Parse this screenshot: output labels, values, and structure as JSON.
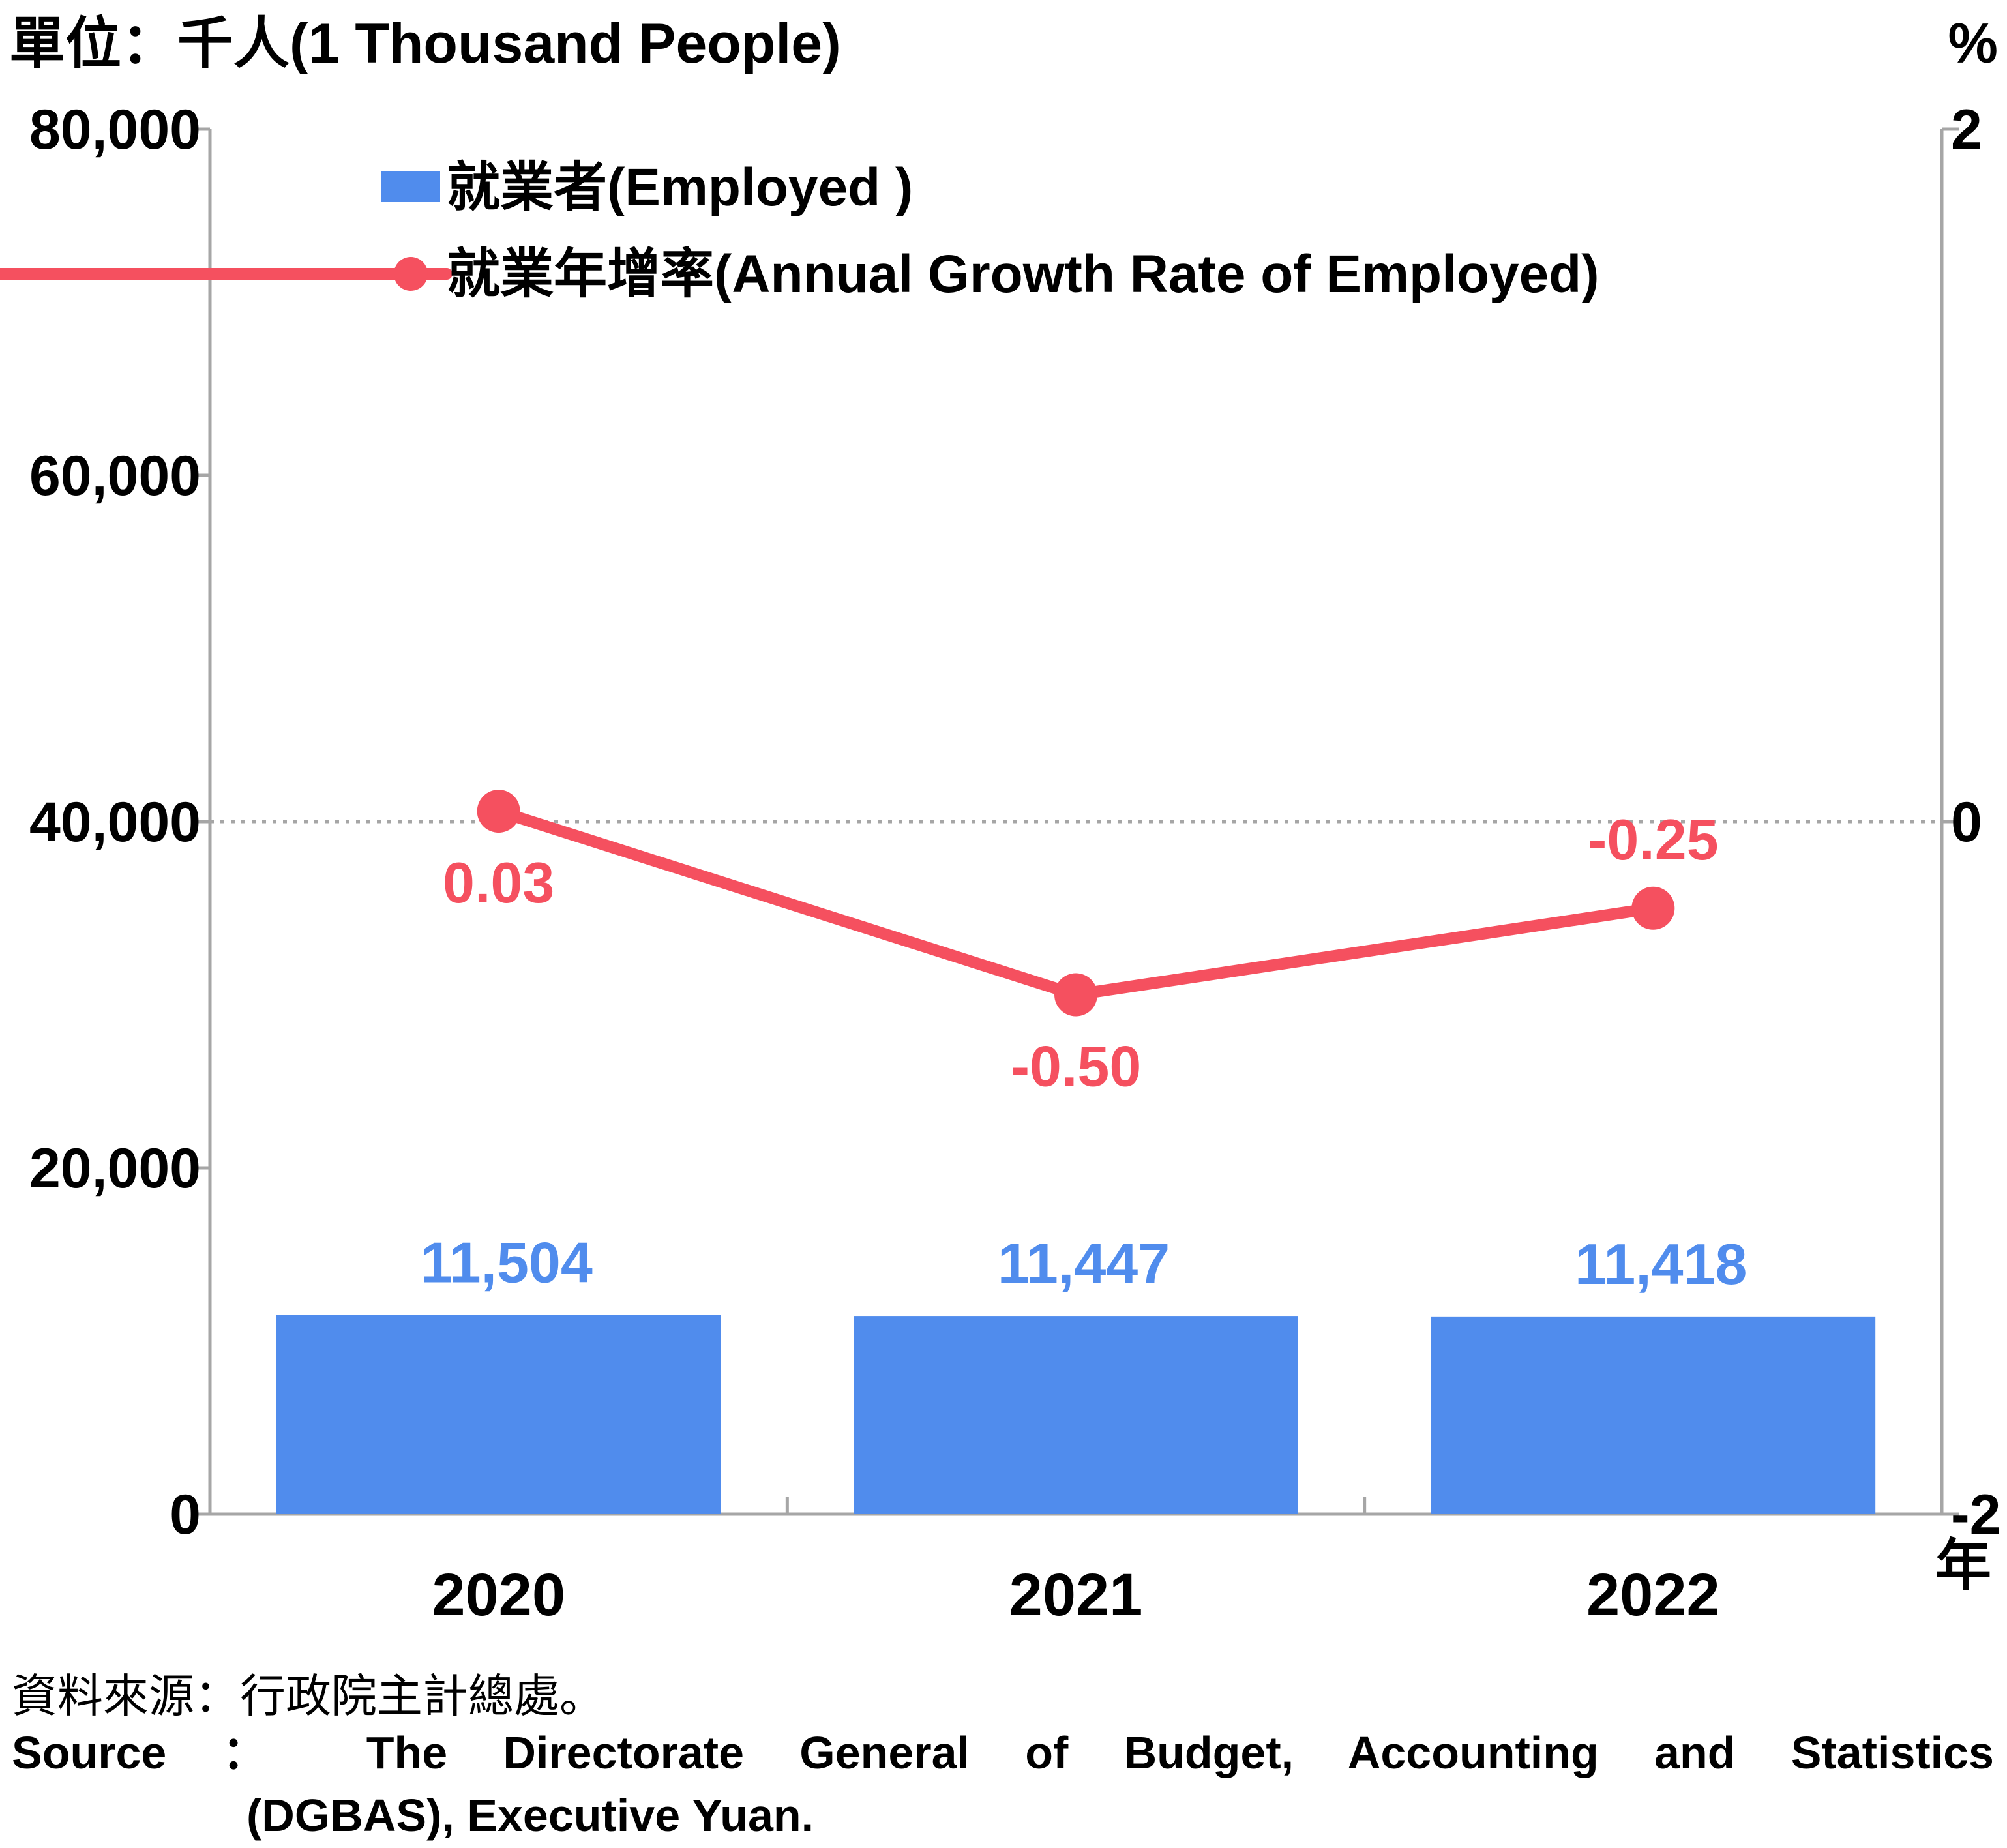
{
  "chart_data": {
    "type": "bar",
    "left_unit_label": "單位：千人(1 Thousand People)",
    "right_unit_label": "%",
    "x_unit_label": "年",
    "categories": [
      "2020",
      "2021",
      "2022"
    ],
    "series": [
      {
        "name": "就業者(Employed )",
        "type": "bar",
        "axis": "left",
        "color": "#508ced",
        "values": [
          11504,
          11447,
          11418
        ],
        "labels": [
          "11,504",
          "11,447",
          "11,418"
        ]
      },
      {
        "name": "就業年增率(Annual Growth Rate of Employed)",
        "type": "line",
        "axis": "right",
        "color": "#f5505f",
        "values": [
          0.03,
          -0.5,
          -0.25
        ],
        "labels": [
          "0.03",
          "-0.50",
          "-0.25"
        ]
      }
    ],
    "left_axis": {
      "ylim": [
        0,
        80000
      ],
      "ticks": [
        0,
        20000,
        40000,
        60000,
        80000
      ],
      "tick_labels": [
        "0",
        "20,000",
        "40,000",
        "60,000",
        "80,000"
      ]
    },
    "right_axis": {
      "ylim": [
        -2,
        2
      ],
      "ticks": [
        -2,
        0,
        2
      ],
      "tick_labels": [
        "-2",
        "0",
        "2"
      ]
    },
    "reference_line": {
      "axis": "right",
      "value": 0,
      "style": "dotted"
    },
    "legend": "top-left",
    "grid": false
  },
  "source": {
    "cn": "資料來源：行政院主計總處。",
    "en_line1": "Source ： The Directorate General of Budget, Accounting and Statistics",
    "en_line2": "(DGBAS), Executive Yuan."
  }
}
